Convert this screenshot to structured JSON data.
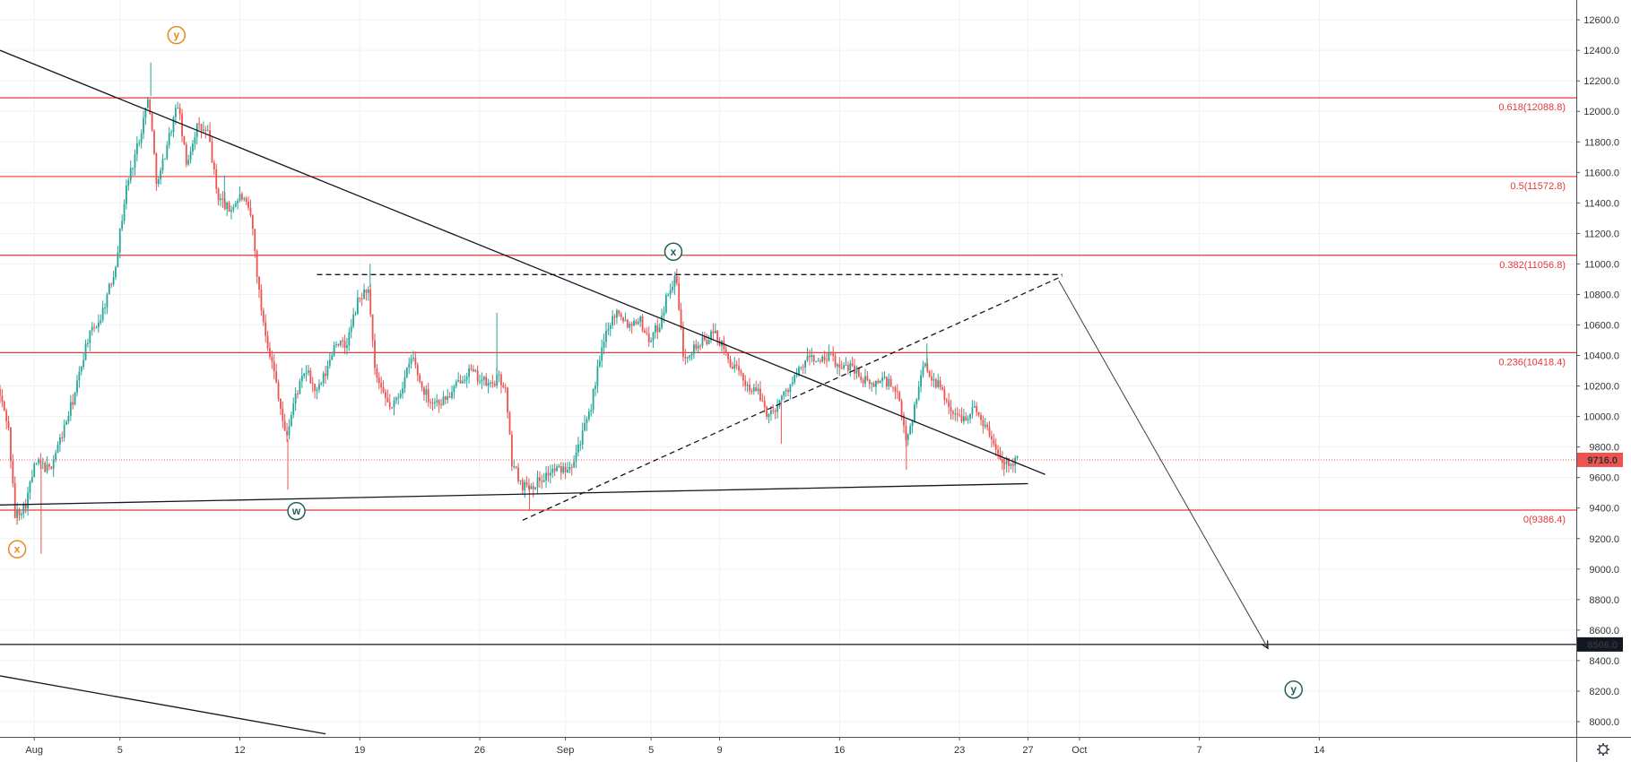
{
  "chart_data": {
    "type": "candlestick",
    "price_axis": {
      "ylim": [
        7900,
        12730
      ],
      "ticks": [
        8000,
        8200,
        8400,
        8600,
        8800,
        9000,
        9200,
        9400,
        9600,
        9800,
        10000,
        10200,
        10400,
        10600,
        10800,
        11000,
        11200,
        11400,
        11600,
        11800,
        12000,
        12200,
        12400,
        12600
      ],
      "tick_labels": [
        "8000.0",
        "8200.0",
        "8400.0",
        "8600.0",
        "8800.0",
        "9000.0",
        "9200.0",
        "9400.0",
        "9600.0",
        "9800.0",
        "10000.0",
        "10200.0",
        "10400.0",
        "10600.0",
        "10800.0",
        "11000.0",
        "11200.0",
        "11400.0",
        "11600.0",
        "11800.0",
        "12000.0",
        "12200.0",
        "12400.0",
        "12600.0"
      ]
    },
    "time_axis": {
      "labels": [
        "Aug",
        "5",
        "12",
        "19",
        "26",
        "Sep",
        "5",
        "9",
        "16",
        "23",
        "27",
        "Oct",
        "7",
        "14"
      ],
      "label_days": [
        31,
        36,
        43,
        50,
        57,
        62,
        67,
        71,
        78,
        85,
        89,
        92,
        99,
        106
      ],
      "xlim_days": [
        29.0,
        121.0
      ],
      "last_bar_day": 88.4
    },
    "price_series": {
      "anchors": [
        [
          29.0,
          10180
        ],
        [
          29.6,
          9950
        ],
        [
          30.0,
          9350
        ],
        [
          30.6,
          9420
        ],
        [
          31.2,
          9700
        ],
        [
          32.0,
          9650
        ],
        [
          32.8,
          9900
        ],
        [
          33.5,
          10150
        ],
        [
          34.2,
          10500
        ],
        [
          35.0,
          10650
        ],
        [
          35.8,
          10950
        ],
        [
          36.5,
          11500
        ],
        [
          37.2,
          11800
        ],
        [
          37.8,
          12100
        ],
        [
          38.3,
          11500
        ],
        [
          38.9,
          11800
        ],
        [
          39.5,
          12050
        ],
        [
          40.0,
          11650
        ],
        [
          40.6,
          11900
        ],
        [
          41.3,
          11850
        ],
        [
          41.8,
          11450
        ],
        [
          42.5,
          11350
        ],
        [
          43.2,
          11450
        ],
        [
          43.8,
          11300
        ],
        [
          44.3,
          10750
        ],
        [
          44.8,
          10450
        ],
        [
          45.3,
          10200
        ],
        [
          45.8,
          9850
        ],
        [
          46.4,
          10150
        ],
        [
          47.0,
          10300
        ],
        [
          47.6,
          10150
        ],
        [
          48.2,
          10300
        ],
        [
          48.7,
          10500
        ],
        [
          49.3,
          10450
        ],
        [
          50.0,
          10750
        ],
        [
          50.6,
          10850
        ],
        [
          51.0,
          10300
        ],
        [
          51.4,
          10150
        ],
        [
          52.0,
          10050
        ],
        [
          52.6,
          10200
        ],
        [
          53.2,
          10400
        ],
        [
          53.7,
          10200
        ],
        [
          54.3,
          10100
        ],
        [
          54.9,
          10100
        ],
        [
          55.5,
          10150
        ],
        [
          56.0,
          10250
        ],
        [
          56.5,
          10300
        ],
        [
          57.1,
          10250
        ],
        [
          57.7,
          10200
        ],
        [
          58.2,
          10250
        ],
        [
          58.6,
          10200
        ],
        [
          59.0,
          9700
        ],
        [
          59.6,
          9550
        ],
        [
          60.2,
          9550
        ],
        [
          60.8,
          9600
        ],
        [
          61.4,
          9650
        ],
        [
          61.9,
          9650
        ],
        [
          62.5,
          9700
        ],
        [
          63.0,
          9850
        ],
        [
          63.5,
          10000
        ],
        [
          64.0,
          10300
        ],
        [
          64.6,
          10600
        ],
        [
          65.2,
          10700
        ],
        [
          65.8,
          10600
        ],
        [
          66.4,
          10650
        ],
        [
          67.0,
          10500
        ],
        [
          67.6,
          10600
        ],
        [
          68.2,
          10850
        ],
        [
          68.6,
          10900
        ],
        [
          69.0,
          10400
        ],
        [
          69.6,
          10450
        ],
        [
          70.3,
          10500
        ],
        [
          70.9,
          10550
        ],
        [
          71.5,
          10400
        ],
        [
          72.1,
          10300
        ],
        [
          72.8,
          10200
        ],
        [
          73.4,
          10150
        ],
        [
          74.0,
          10000
        ],
        [
          74.6,
          10100
        ],
        [
          75.2,
          10200
        ],
        [
          75.8,
          10300
        ],
        [
          76.4,
          10400
        ],
        [
          77.0,
          10350
        ],
        [
          77.6,
          10400
        ],
        [
          78.2,
          10300
        ],
        [
          78.8,
          10350
        ],
        [
          79.4,
          10250
        ],
        [
          80.0,
          10200
        ],
        [
          80.6,
          10250
        ],
        [
          81.2,
          10200
        ],
        [
          81.6,
          10100
        ],
        [
          82.0,
          9850
        ],
        [
          82.5,
          10050
        ],
        [
          83.0,
          10350
        ],
        [
          83.6,
          10250
        ],
        [
          84.2,
          10150
        ],
        [
          84.8,
          10000
        ],
        [
          85.4,
          10000
        ],
        [
          86.0,
          10050
        ],
        [
          86.6,
          9950
        ],
        [
          87.2,
          9800
        ],
        [
          87.8,
          9700
        ],
        [
          88.4,
          9716
        ]
      ],
      "extremes": [
        [
          30.0,
          9300
        ],
        [
          31.4,
          9100
        ],
        [
          37.8,
          12320
        ],
        [
          42.1,
          11580
        ],
        [
          45.8,
          9520
        ],
        [
          50.6,
          11000
        ],
        [
          58.0,
          10680
        ],
        [
          59.9,
          9380
        ],
        [
          68.4,
          10950
        ],
        [
          74.6,
          9820
        ],
        [
          81.9,
          9650
        ],
        [
          83.1,
          10480
        ],
        [
          87.6,
          9610
        ]
      ]
    },
    "fib_levels": [
      {
        "ratio": "0",
        "price": 9386.4,
        "label": "0(9386.4)"
      },
      {
        "ratio": "0.236",
        "price": 10418.4,
        "label": "0.236(10418.4)"
      },
      {
        "ratio": "0.382",
        "price": 11056.8,
        "label": "0.382(11056.8)"
      },
      {
        "ratio": "0.5",
        "price": 11572.8,
        "label": "0.5(11572.8)"
      },
      {
        "ratio": "0.618",
        "price": 12088.8,
        "label": "0.618(12088.8)"
      }
    ],
    "current_price": {
      "value": 9716.0,
      "label": "9716.0",
      "color": "#ef5350"
    },
    "horizontal_line": {
      "value": 8506.0,
      "label": "8506.0",
      "color": "#131722"
    },
    "trendlines": [
      {
        "name": "descending-resistance",
        "style": "solid",
        "from": [
          29.0,
          12400
        ],
        "to": [
          90.0,
          9620
        ]
      },
      {
        "name": "lower-support",
        "style": "solid",
        "from": [
          29.0,
          9420
        ],
        "to": [
          89.0,
          9560
        ]
      },
      {
        "name": "rising-channel",
        "style": "dashed",
        "from": [
          59.5,
          9320
        ],
        "to": [
          91.0,
          10920
        ]
      },
      {
        "name": "x-level-projection",
        "style": "dashed",
        "from": [
          47.5,
          10930
        ],
        "to": [
          91.0,
          10930
        ]
      },
      {
        "name": "lower-descending",
        "style": "solid",
        "from": [
          29.0,
          8300
        ],
        "to": [
          48.0,
          7920
        ]
      },
      {
        "name": "projection-arrow",
        "style": "solid-arrow",
        "from": [
          90.8,
          10890
        ],
        "to": [
          103.0,
          8480
        ]
      }
    ],
    "wave_labels": [
      {
        "text": "x",
        "day": 30.0,
        "price": 9130,
        "color": "#e6891f"
      },
      {
        "text": "y",
        "day": 39.3,
        "price": 12500,
        "color": "#e6891f"
      },
      {
        "text": "w",
        "day": 46.3,
        "price": 9380,
        "color": "#1e5f5a"
      },
      {
        "text": "x",
        "day": 68.3,
        "price": 11080,
        "color": "#1e5f5a"
      },
      {
        "text": "y",
        "day": 104.5,
        "price": 8210,
        "color": "#1e5f5a"
      }
    ],
    "colors": {
      "up": "#26a69a",
      "down": "#ef5350",
      "fib": "#e53935",
      "fib_text": "#e53935",
      "trendline": "#131722",
      "grid": "#eef1f5"
    },
    "grid": true
  },
  "axis_corner": {
    "icon": "gear-icon"
  }
}
